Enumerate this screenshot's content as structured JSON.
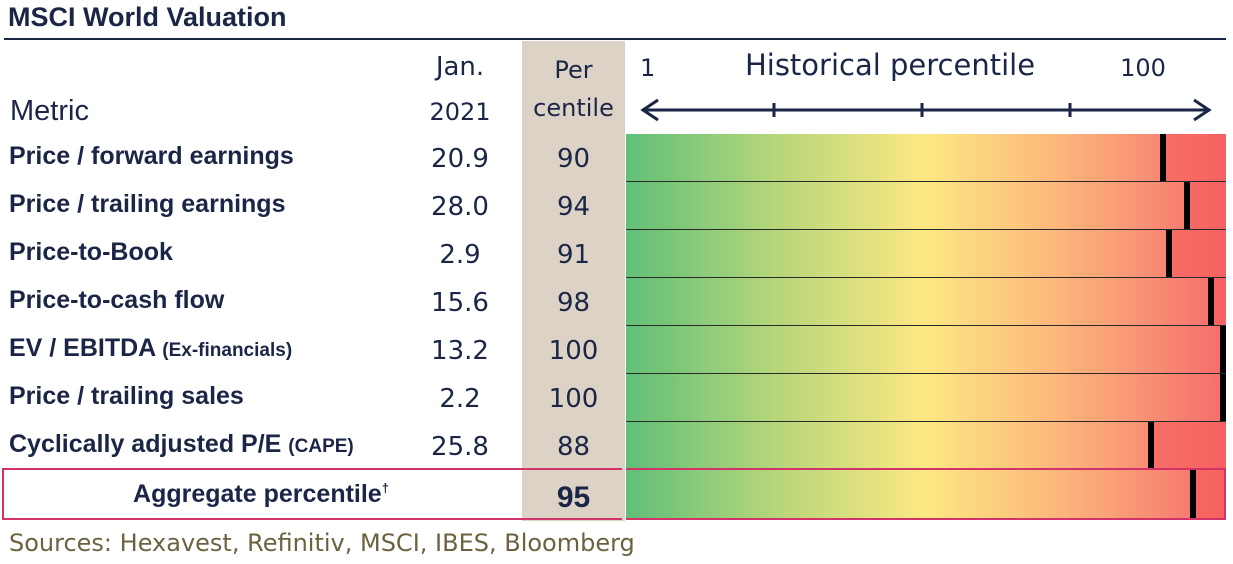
{
  "title": "MSCI World Valuation",
  "headers": {
    "metric": "Metric",
    "date_line1": "Jan.",
    "date_line2": "2021",
    "pct_line1": "Per",
    "pct_line2": "centile",
    "hist_title": "Historical percentile",
    "hist_min": "1",
    "hist_max": "100"
  },
  "chart_data": {
    "type": "bar",
    "title": "MSCI World Valuation",
    "xlabel": "Historical percentile",
    "xlim": [
      1,
      100
    ],
    "categories": [
      "Price / forward earnings",
      "Price / trailing earnings",
      "Price-to-Book",
      "Price-to-cash flow",
      "EV / EBITDA (Ex-financials)",
      "Price / trailing sales",
      "Cyclically adjusted P/E (CAPE)",
      "Aggregate percentile"
    ],
    "series": [
      {
        "name": "Jan. 2021",
        "values": [
          20.9,
          28.0,
          2.9,
          15.6,
          13.2,
          2.2,
          25.8,
          null
        ]
      },
      {
        "name": "Per centile",
        "values": [
          90,
          94,
          91,
          98,
          100,
          100,
          88,
          95
        ]
      }
    ]
  },
  "rows": [
    {
      "label": "Price / forward earnings",
      "note": "",
      "value": "20.9",
      "pct": "90",
      "pct_num": 90
    },
    {
      "label": "Price / trailing earnings",
      "note": "",
      "value": "28.0",
      "pct": "94",
      "pct_num": 94
    },
    {
      "label": "Price-to-Book",
      "note": "",
      "value": "2.9",
      "pct": "91",
      "pct_num": 91
    },
    {
      "label": "Price-to-cash flow",
      "note": "",
      "value": "15.6",
      "pct": "98",
      "pct_num": 98
    },
    {
      "label": "EV / EBITDA",
      "note": "(Ex-financials)",
      "value": "13.2",
      "pct": "100",
      "pct_num": 100
    },
    {
      "label": "Price / trailing sales",
      "note": "",
      "value": "2.2",
      "pct": "100",
      "pct_num": 100
    },
    {
      "label": "Cyclically adjusted P/E",
      "note": "(CAPE)",
      "value": "25.8",
      "pct": "88",
      "pct_num": 88
    }
  ],
  "aggregate": {
    "label": "Aggregate percentile",
    "dagger": "†",
    "pct": "95",
    "pct_num": 95
  },
  "source": "Sources: Hexavest, Refinitiv, MSCI, IBES, Bloomberg",
  "colors": {
    "navy": "#1b2646",
    "pct_column": "#dcd3c6",
    "highlight_border": "#d2336a",
    "green": "#5fbf78",
    "yellow": "#fde883",
    "red": "#f56b6c"
  }
}
